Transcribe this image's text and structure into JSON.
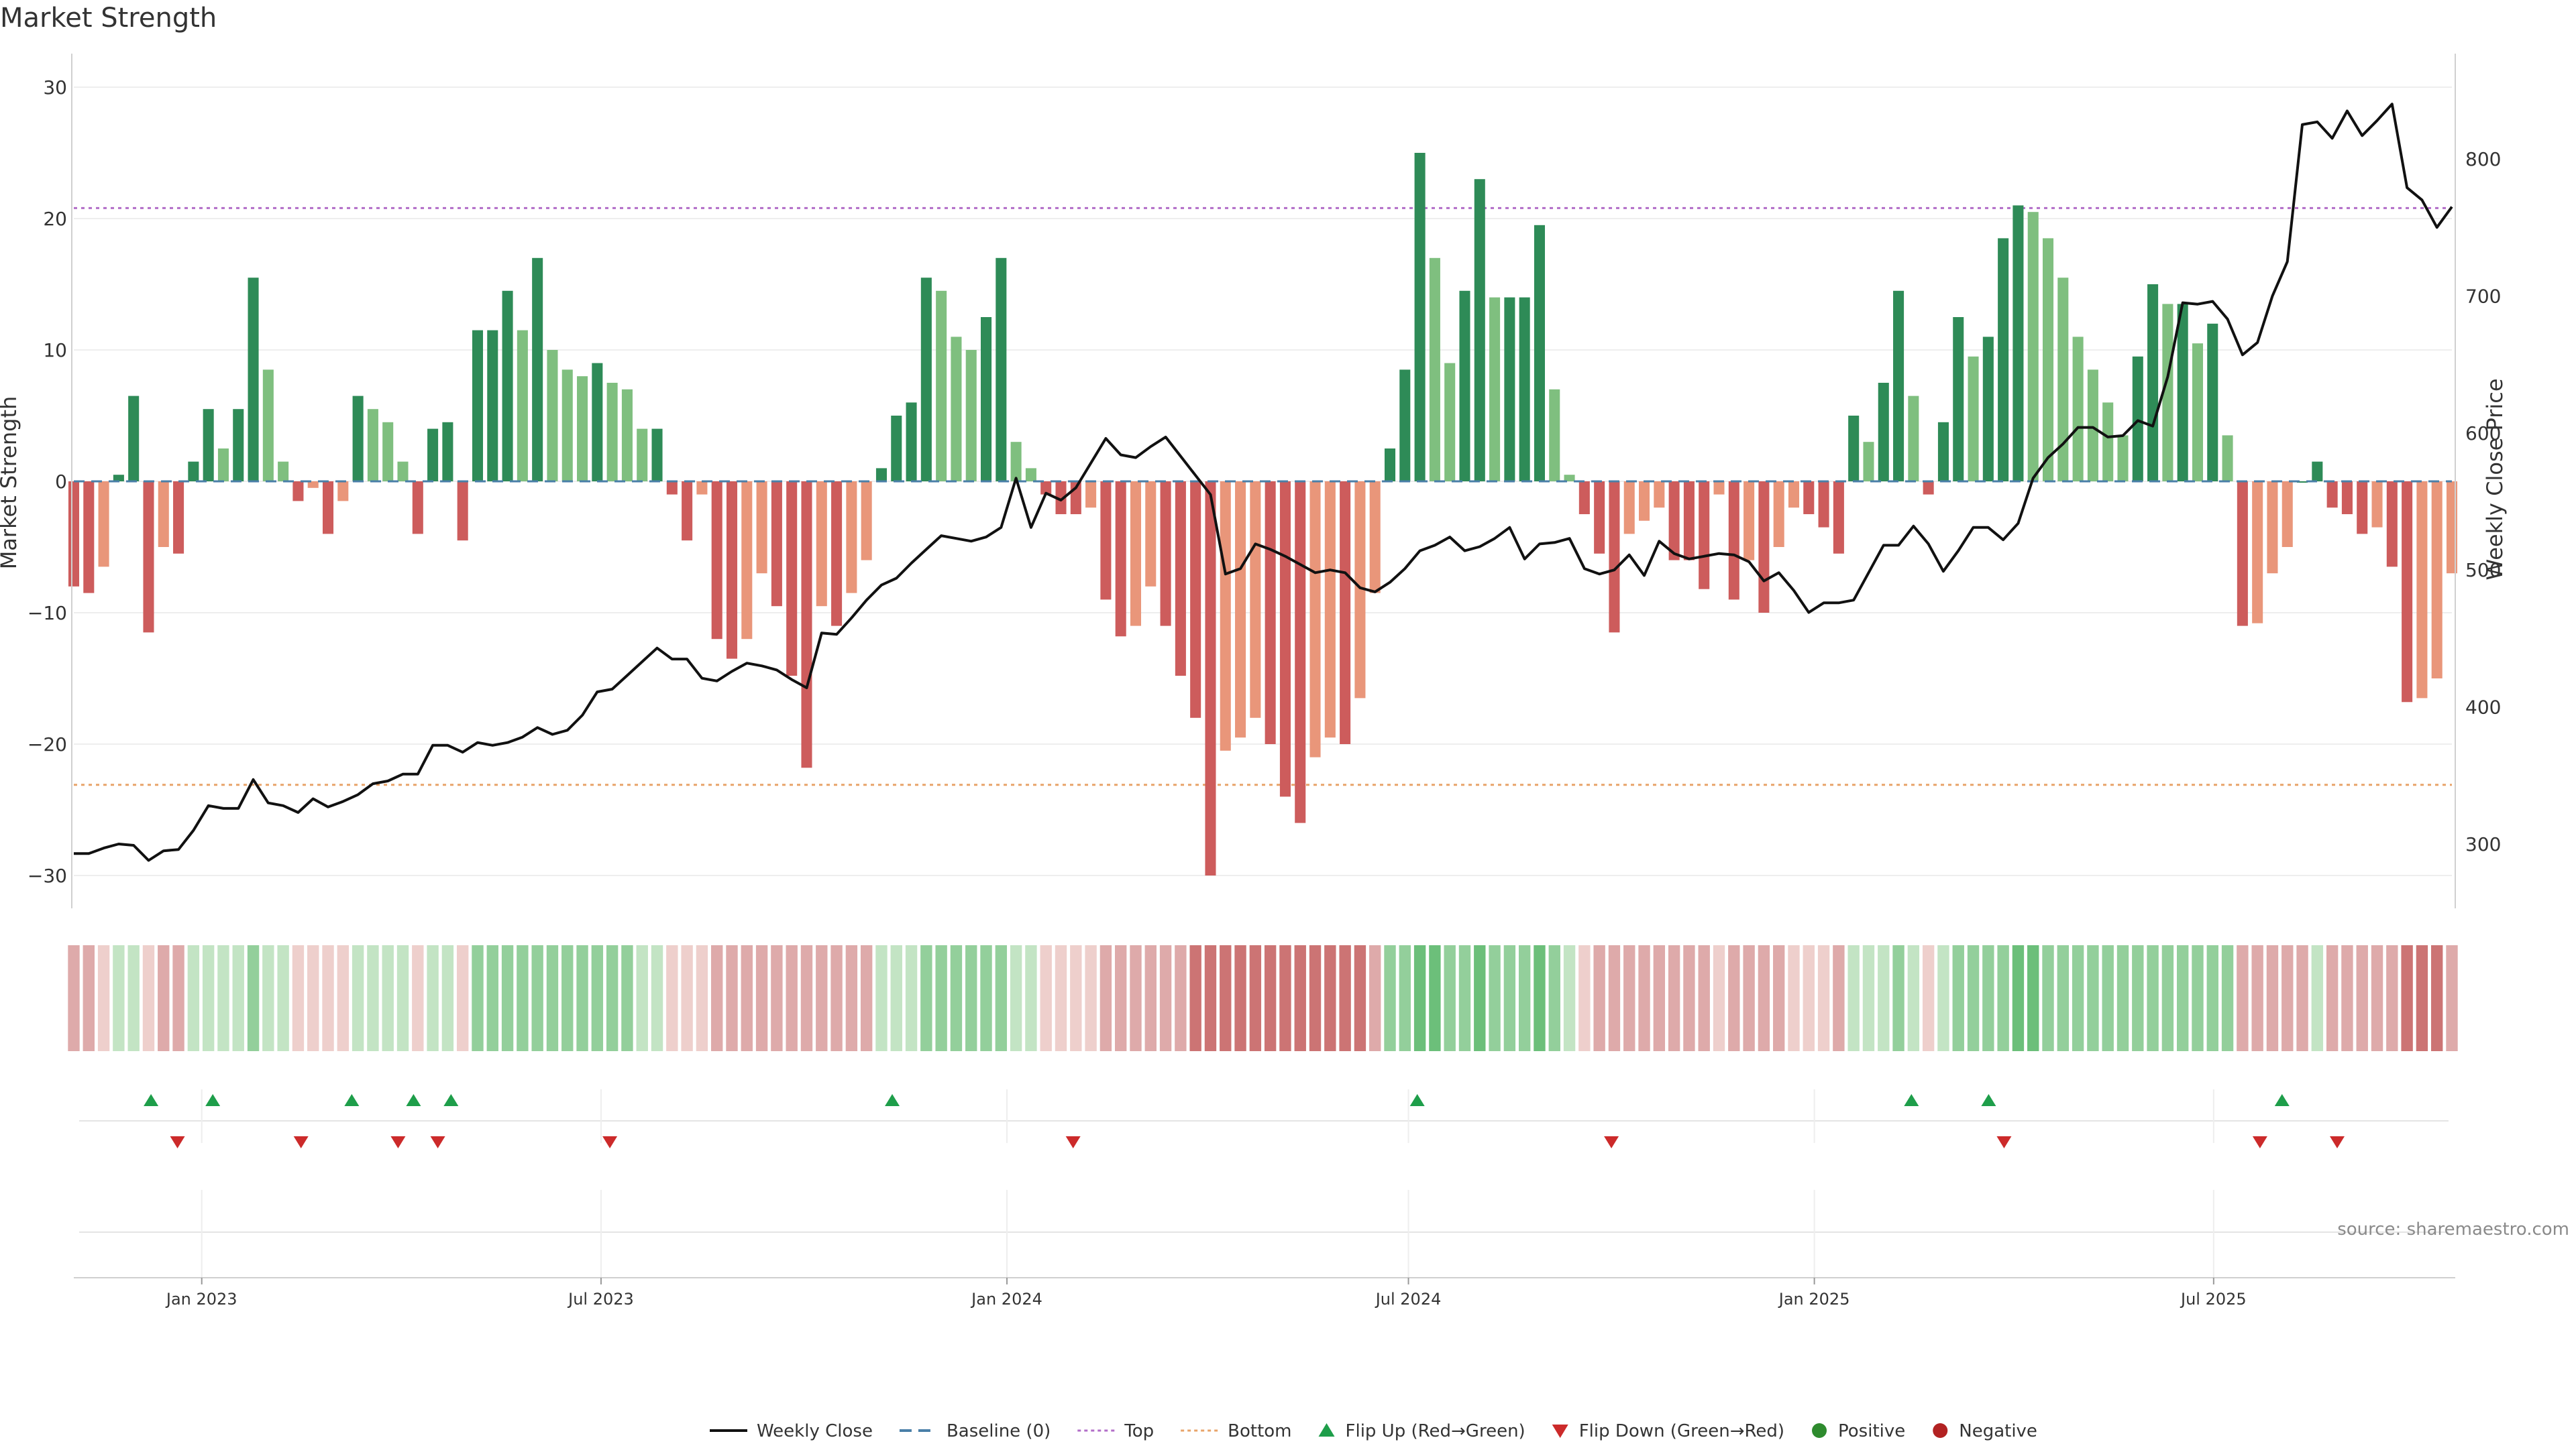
{
  "chart_data": {
    "type": "bar",
    "title": "Market Strength",
    "ylabel_left": "Market Strength",
    "ylabel_right": "Weekly Close Price",
    "ylim_left": [
      -32,
      32
    ],
    "ylim_right": [
      230,
      870
    ],
    "yticks_left": [
      30,
      20,
      10,
      0,
      -10,
      -20,
      -30
    ],
    "yticks_right": [
      800,
      700,
      600,
      500,
      400,
      300
    ],
    "x_start": "2022-11-04",
    "x_end": "2025-10-17",
    "xticks": [
      {
        "date": "2023-01-01",
        "label": "Jan 2023"
      },
      {
        "date": "2023-07-01",
        "label": "Jul 2023"
      },
      {
        "date": "2024-01-01",
        "label": "Jan 2024"
      },
      {
        "date": "2024-07-01",
        "label": "Jul 2024"
      },
      {
        "date": "2025-01-01",
        "label": "Jan 2025"
      },
      {
        "date": "2025-07-01",
        "label": "Jul 2025"
      }
    ],
    "top_line": 20.8,
    "bottom_line": -23.1,
    "strength": [
      -8,
      -8.5,
      -6.5,
      0.5,
      6.5,
      -11.5,
      -5,
      -5.5,
      1.5,
      5.5,
      2.5,
      5.5,
      15.5,
      8.5,
      1.5,
      -1.5,
      -0.5,
      -4,
      -1.5,
      6.5,
      5.5,
      4.5,
      1.5,
      -4,
      4,
      4.5,
      -4.5,
      11.5,
      11.5,
      14.5,
      11.5,
      17,
      10,
      8.5,
      8,
      9,
      7.5,
      7,
      4,
      4,
      -1,
      -4.5,
      -1,
      -12,
      -13.5,
      -12,
      -7,
      -9.5,
      -14.8,
      -21.8,
      -9.5,
      -11,
      -8.5,
      -6,
      1,
      5,
      6,
      15.5,
      14.5,
      11,
      10,
      12.5,
      17,
      3,
      1,
      -1,
      -2.5,
      -2.5,
      -2,
      -9,
      -11.8,
      -11,
      -8,
      -11,
      -14.8,
      -18,
      -30,
      -20.5,
      -19.5,
      -18,
      -20,
      -24,
      -26,
      -21,
      -19.5,
      -20,
      -16.5,
      -8.5,
      2.5,
      8.5,
      25,
      17,
      9,
      14.5,
      23,
      14,
      14,
      14,
      19.5,
      7,
      0.5,
      -2.5,
      -5.5,
      -11.5,
      -4,
      -3,
      -2,
      -6,
      -6,
      -8.2,
      -1,
      -9,
      -6,
      -10,
      -5,
      -2,
      -2.5,
      -3.5,
      -5.5,
      5,
      3,
      7.5,
      14.5,
      6.5,
      -1,
      4.5,
      12.5,
      9.5,
      11,
      18.5,
      21,
      20.5,
      18.5,
      15.5,
      11,
      8.5,
      6,
      3.5,
      9.5,
      15,
      13.5,
      13.5,
      10.5,
      12,
      3.5,
      -11,
      -10.8,
      -7,
      -5,
      0,
      1.5,
      -2,
      -2.5,
      -4,
      -3.5,
      -6.5,
      -16.8,
      -16.5,
      -15,
      -7
    ],
    "weekly_close": [
      293,
      293,
      297,
      300,
      299,
      288,
      295,
      296,
      310,
      328,
      326,
      326,
      347,
      330,
      328,
      323,
      333,
      327,
      331,
      336,
      344,
      346,
      351,
      351,
      372,
      372,
      367,
      374,
      372,
      374,
      378,
      385,
      380,
      383,
      394,
      411,
      413,
      423,
      433,
      443,
      435,
      435,
      421,
      419,
      426,
      432,
      430,
      427,
      420,
      414,
      454,
      453,
      465,
      478,
      489,
      494,
      505,
      515,
      525,
      523,
      521,
      524,
      531,
      567,
      531,
      556,
      551,
      560,
      578,
      596,
      584,
      582,
      590,
      597,
      583,
      569,
      555,
      497,
      501,
      519,
      515,
      510,
      504,
      498,
      500,
      498,
      487,
      484,
      491,
      501,
      514,
      518,
      524,
      514,
      517,
      523,
      531,
      508,
      519,
      520,
      523,
      501,
      497,
      500,
      511,
      496,
      521,
      512,
      508,
      510,
      512,
      511,
      506,
      492,
      498,
      485,
      469,
      476,
      476,
      478,
      498,
      518,
      518,
      532,
      519,
      499,
      514,
      531,
      531,
      522,
      534,
      567,
      582,
      592,
      604,
      604,
      597,
      598,
      609,
      605,
      641,
      695,
      694,
      696,
      683,
      657,
      666,
      700,
      725,
      825,
      827,
      815,
      835,
      817,
      828,
      840,
      779,
      770,
      750,
      765
    ],
    "trend_levels": [
      -2,
      -2,
      -1,
      1,
      1,
      -1,
      -2,
      -2,
      1,
      1,
      1,
      1,
      2,
      1,
      1,
      -1,
      -1,
      -1,
      -1,
      1,
      1,
      1,
      1,
      -1,
      1,
      1,
      -1,
      2,
      2,
      2,
      2,
      2,
      2,
      2,
      2,
      2,
      2,
      2,
      1,
      1,
      -1,
      -1,
      -1,
      -2,
      -2,
      -2,
      -2,
      -2,
      -2,
      -2,
      -2,
      -2,
      -2,
      -2,
      1,
      1,
      1,
      2,
      2,
      2,
      2,
      2,
      2,
      1,
      1,
      -1,
      -1,
      -1,
      -1,
      -2,
      -2,
      -2,
      -2,
      -2,
      -2,
      -3,
      -3,
      -3,
      -3,
      -3,
      -3,
      -3,
      -3,
      -3,
      -3,
      -3,
      -3,
      -2,
      2,
      2,
      3,
      3,
      2,
      2,
      3,
      2,
      2,
      2,
      3,
      2,
      1,
      -1,
      -2,
      -2,
      -2,
      -2,
      -2,
      -2,
      -2,
      -2,
      -1,
      -2,
      -2,
      -2,
      -2,
      -1,
      -1,
      -1,
      -2,
      1,
      1,
      1,
      2,
      1,
      -1,
      1,
      2,
      2,
      2,
      2,
      3,
      3,
      2,
      2,
      2,
      2,
      2,
      2,
      2,
      2,
      2,
      2,
      2,
      2,
      2,
      -2,
      -2,
      -2,
      -2,
      -2,
      1,
      -2,
      -2,
      -2,
      -2,
      -2,
      -3,
      -3,
      -3,
      -2
    ],
    "flip_up_dates": [
      "2022-12-09",
      "2023-01-06",
      "2023-03-10",
      "2023-04-07",
      "2023-04-24",
      "2023-11-10",
      "2024-07-05",
      "2025-02-14",
      "2025-03-21",
      "2025-08-01"
    ],
    "flip_down_dates": [
      "2022-12-21",
      "2023-02-15",
      "2023-03-31",
      "2023-04-18",
      "2023-07-05",
      "2024-01-31",
      "2024-10-01",
      "2025-03-28",
      "2025-07-22",
      "2025-08-26"
    ],
    "legend": [
      {
        "label": "Weekly Close",
        "symbol": "line",
        "color": "#111111"
      },
      {
        "label": "Baseline (0)",
        "symbol": "dash",
        "color": "#4a7fa8"
      },
      {
        "label": "Top",
        "symbol": "dot",
        "color": "#b26ec8"
      },
      {
        "label": "Bottom",
        "symbol": "dot",
        "color": "#e8a46a"
      },
      {
        "label": "Flip Up (Red→Green)",
        "symbol": "triangle-up",
        "color": "#1e9e4a"
      },
      {
        "label": "Flip Down (Green→Red)",
        "symbol": "triangle-down",
        "color": "#cc2a2a"
      },
      {
        "label": "Positive",
        "symbol": "circle",
        "color": "#2e8b2e"
      },
      {
        "label": "Negative",
        "symbol": "circle",
        "color": "#b22222"
      }
    ],
    "source": "source: sharemaestro.com"
  },
  "colors": {
    "strong_positive": "#2e8b57",
    "light_positive": "#7fbf7f",
    "strong_negative": "#cd5c5c",
    "light_negative": "#e9967a"
  }
}
